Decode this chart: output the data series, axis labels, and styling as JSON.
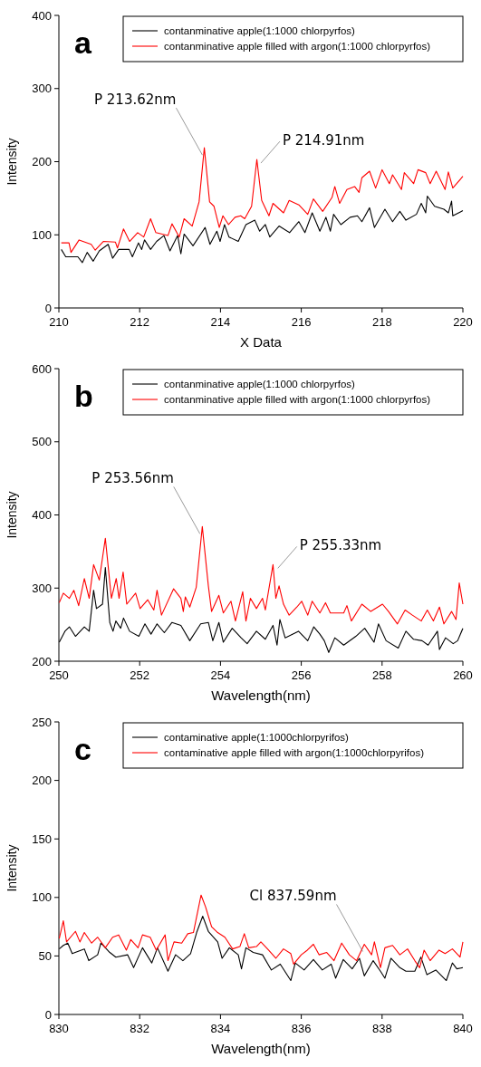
{
  "chart_data": [
    {
      "type": "line",
      "title": "a",
      "xlabel": "X Data",
      "ylabel": "Intensity",
      "xlim": [
        210,
        220
      ],
      "xticks": [
        210,
        212,
        214,
        216,
        218,
        220
      ],
      "ylim": [
        0,
        400
      ],
      "yticks": [
        0,
        100,
        200,
        300,
        400
      ],
      "grid": false,
      "legend": "top right",
      "annotations": [
        {
          "text": "P 213.62nm",
          "x": 213.62,
          "y": 219
        },
        {
          "text": "P 214.91nm",
          "x": 214.91,
          "y": 203
        }
      ],
      "series": [
        {
          "name": "contanminative apple(1:1000 chlorpyrfos)",
          "color": "#000000",
          "x": [
            210.06,
            210.17,
            210.47,
            210.58,
            210.7,
            210.85,
            211,
            211.22,
            211.33,
            211.48,
            211.74,
            211.82,
            211.97,
            212.05,
            212.12,
            212.27,
            212.42,
            212.6,
            212.75,
            212.94,
            213.02,
            213.1,
            213.32,
            213.62,
            213.74,
            213.91,
            213.99,
            214.1,
            214.21,
            214.44,
            214.63,
            214.85,
            214.97,
            215.11,
            215.22,
            215.45,
            215.71,
            215.94,
            216.09,
            216.27,
            216.46,
            216.61,
            216.72,
            216.8,
            216.98,
            217.21,
            217.39,
            217.5,
            217.69,
            217.81,
            218.07,
            218.26,
            218.44,
            218.59,
            218.85,
            218.97,
            219.08,
            219.12,
            219.3,
            219.53,
            219.64,
            219.72,
            219.75,
            220
          ],
          "values": [
            80,
            70,
            70,
            62,
            76,
            64,
            78,
            87,
            68,
            80,
            80,
            70,
            89,
            80,
            93,
            80,
            91,
            99,
            78,
            99,
            74,
            101,
            85,
            110,
            87,
            105,
            91,
            114,
            97,
            91,
            114,
            120,
            105,
            114,
            97,
            112,
            103,
            118,
            103,
            130,
            105,
            124,
            105,
            128,
            114,
            124,
            126,
            118,
            137,
            110,
            135,
            118,
            132,
            120,
            128,
            143,
            130,
            153,
            139,
            135,
            130,
            146,
            126,
            133
          ]
        },
        {
          "name": "contanminative apple filled with argon(1:1000 chlorpyrfos)",
          "color": "#ff0000",
          "x": [
            210.06,
            210.25,
            210.3,
            210.5,
            210.8,
            210.9,
            211.1,
            211.4,
            211.45,
            211.6,
            211.75,
            211.95,
            212.1,
            212.27,
            212.4,
            212.7,
            212.8,
            212.98,
            213.1,
            213.3,
            213.47,
            213.6,
            213.73,
            213.84,
            213.97,
            214.06,
            214.2,
            214.36,
            214.5,
            214.6,
            214.77,
            214.9,
            215.02,
            215.2,
            215.3,
            215.56,
            215.7,
            215.94,
            216.16,
            216.3,
            216.53,
            216.76,
            216.83,
            216.95,
            217.13,
            217.32,
            217.43,
            217.5,
            217.69,
            217.84,
            218,
            218.18,
            218.26,
            218.48,
            218.55,
            218.78,
            218.89,
            219.08,
            219.19,
            219.34,
            219.56,
            219.64,
            219.75,
            220
          ],
          "values": [
            89,
            89,
            76,
            93,
            87,
            79,
            91,
            90,
            82,
            108,
            91,
            103,
            97,
            122,
            103,
            99,
            115,
            97,
            122,
            112,
            145,
            219,
            145,
            139,
            110,
            126,
            114,
            124,
            126,
            122,
            139,
            203,
            147,
            126,
            143,
            130,
            147,
            141,
            128,
            149,
            132,
            151,
            166,
            143,
            162,
            166,
            158,
            178,
            187,
            164,
            189,
            170,
            182,
            162,
            185,
            170,
            189,
            185,
            170,
            187,
            162,
            186,
            164,
            180
          ]
        }
      ]
    },
    {
      "type": "line",
      "title": "b",
      "xlabel": "Wavelength(nm)",
      "ylabel": "Intensity",
      "xlim": [
        250,
        260
      ],
      "xticks": [
        250,
        252,
        254,
        256,
        258,
        260
      ],
      "ylim": [
        200,
        600
      ],
      "yticks": [
        200,
        300,
        400,
        500,
        600
      ],
      "grid": false,
      "legend": "top right",
      "annotations": [
        {
          "text": "P 253.56nm",
          "x": 253.56,
          "y": 384
        },
        {
          "text": "P 255.33nm",
          "x": 255.33,
          "y": 332
        }
      ],
      "series": [
        {
          "name": "contanminative apple(1:1000 chlorpyrfos)",
          "color": "#000000",
          "x": [
            250.01,
            250.15,
            250.26,
            250.41,
            250.63,
            250.75,
            250.86,
            250.93,
            251.08,
            251.15,
            251.26,
            251.34,
            251.41,
            251.53,
            251.6,
            251.75,
            251.98,
            252.13,
            252.28,
            252.43,
            252.61,
            252.8,
            253.02,
            253.24,
            253.51,
            253.7,
            253.81,
            253.96,
            254.07,
            254.29,
            254.51,
            254.66,
            254.89,
            255.11,
            255.3,
            255.4,
            255.47,
            255.6,
            255.93,
            256.16,
            256.31,
            256.46,
            256.57,
            256.68,
            256.83,
            257.05,
            257.35,
            257.57,
            257.8,
            257.91,
            258.1,
            258.4,
            258.59,
            258.78,
            258.99,
            259.14,
            259.37,
            259.42,
            259.57,
            259.76,
            259.87,
            260
          ],
          "values": [
            226,
            241,
            247,
            234,
            247,
            241,
            297,
            272,
            278,
            328,
            253,
            241,
            255,
            245,
            259,
            241,
            234,
            251,
            237,
            251,
            239,
            253,
            249,
            228,
            251,
            253,
            228,
            253,
            226,
            245,
            232,
            224,
            241,
            230,
            249,
            222,
            257,
            232,
            241,
            228,
            247,
            237,
            228,
            212,
            232,
            222,
            234,
            245,
            226,
            251,
            228,
            218,
            241,
            230,
            228,
            222,
            241,
            216,
            232,
            224,
            228,
            245
          ]
        },
        {
          "name": "contanminative apple filled with argon(1:1000 chlorpyrfos)",
          "color": "#ff0000",
          "x": [
            250.01,
            250.11,
            250.26,
            250.37,
            250.49,
            250.63,
            250.75,
            250.86,
            251,
            251.15,
            251.3,
            251.42,
            251.49,
            251.59,
            251.68,
            251.9,
            252.01,
            252.2,
            252.35,
            252.43,
            252.54,
            252.84,
            253.02,
            253.08,
            253.13,
            253.24,
            253.4,
            253.55,
            253.7,
            253.78,
            253.96,
            254.07,
            254.26,
            254.37,
            254.55,
            254.63,
            254.74,
            254.89,
            255.04,
            255.11,
            255.3,
            255.37,
            255.45,
            255.56,
            255.7,
            255.89,
            256.01,
            256.16,
            256.27,
            256.46,
            256.6,
            256.72,
            257.05,
            257.13,
            257.24,
            257.5,
            257.72,
            258.01,
            258.16,
            258.38,
            258.57,
            258.75,
            258.97,
            259.12,
            259.27,
            259.42,
            259.53,
            259.72,
            259.83,
            259.91,
            260
          ],
          "values": [
            280,
            293,
            286,
            297,
            276,
            313,
            286,
            332,
            311,
            368,
            286,
            313,
            286,
            322,
            278,
            293,
            272,
            284,
            270,
            297,
            263,
            299,
            286,
            268,
            288,
            274,
            301,
            384,
            303,
            268,
            290,
            266,
            282,
            255,
            295,
            255,
            286,
            272,
            286,
            270,
            332,
            286,
            303,
            278,
            263,
            274,
            282,
            263,
            282,
            266,
            280,
            266,
            266,
            276,
            255,
            278,
            268,
            278,
            268,
            251,
            270,
            263,
            255,
            270,
            255,
            274,
            251,
            268,
            257,
            307,
            278
          ]
        }
      ]
    },
    {
      "type": "line",
      "title": "c",
      "xlabel": "Wavelength(nm)",
      "ylabel": "Intensity",
      "xlim": [
        830,
        840
      ],
      "xticks": [
        830,
        832,
        834,
        836,
        838,
        840
      ],
      "ylim": [
        0,
        250
      ],
      "yticks": [
        0,
        50,
        100,
        150,
        200,
        250
      ],
      "grid": false,
      "legend": "top right",
      "annotations": [
        {
          "text": "Cl 837.59nm",
          "x": 837.59,
          "y": 60
        }
      ],
      "series": [
        {
          "name": "contaminative apple(1:1000chlorpyrifos)",
          "color": "#000000",
          "x": [
            830.01,
            830.11,
            830.22,
            830.33,
            830.63,
            830.74,
            830.96,
            831.04,
            831.26,
            831.41,
            831.7,
            831.85,
            832.07,
            832.3,
            832.44,
            832.7,
            832.89,
            833.07,
            833.26,
            833.41,
            833.56,
            833.7,
            833.93,
            834.04,
            834.22,
            834.44,
            834.52,
            834.63,
            834.81,
            835.04,
            835.26,
            835.48,
            835.74,
            835.85,
            836.07,
            836.3,
            836.52,
            836.74,
            836.85,
            837.04,
            837.26,
            837.44,
            837.56,
            837.78,
            837.96,
            838.07,
            838.22,
            838.44,
            838.59,
            838.81,
            838.96,
            839.11,
            839.33,
            839.59,
            839.74,
            839.85,
            840
          ],
          "values": [
            56,
            59,
            61,
            52,
            56,
            46,
            51,
            61,
            53,
            49,
            51,
            40,
            57,
            44,
            57,
            37,
            51,
            46,
            52,
            70,
            84,
            71,
            62,
            48,
            57,
            51,
            39,
            57,
            53,
            51,
            38,
            43,
            29,
            44,
            38,
            47,
            38,
            43,
            31,
            47,
            39,
            48,
            33,
            46,
            37,
            31,
            48,
            40,
            37,
            37,
            49,
            34,
            38,
            29,
            44,
            39,
            40
          ]
        },
        {
          "name": "contaminative apple filled with argon(1:1000chlorpyrifos)",
          "color": "#ff0000",
          "x": [
            830.01,
            830.11,
            830.19,
            830.41,
            830.52,
            830.63,
            830.81,
            830.96,
            831.15,
            831.33,
            831.48,
            831.67,
            831.78,
            831.96,
            832.07,
            832.26,
            832.41,
            832.63,
            832.7,
            832.85,
            833.04,
            833.19,
            833.33,
            833.52,
            833.63,
            833.78,
            833.93,
            834.11,
            834.3,
            834.48,
            834.59,
            834.7,
            834.89,
            835,
            835.19,
            835.37,
            835.56,
            835.74,
            835.81,
            836,
            836.15,
            836.3,
            836.44,
            836.63,
            836.81,
            837,
            837.19,
            837.37,
            837.56,
            837.74,
            837.81,
            837.96,
            838.07,
            838.26,
            838.44,
            838.63,
            838.81,
            838.93,
            839.04,
            839.19,
            839.41,
            839.56,
            839.74,
            839.93,
            840
          ],
          "values": [
            65,
            80,
            62,
            71,
            62,
            70,
            61,
            66,
            57,
            66,
            68,
            55,
            64,
            57,
            68,
            66,
            55,
            68,
            46,
            62,
            61,
            69,
            70,
            102,
            92,
            75,
            70,
            66,
            56,
            58,
            69,
            57,
            58,
            62,
            55,
            48,
            56,
            52,
            43,
            51,
            55,
            60,
            51,
            53,
            46,
            61,
            51,
            46,
            60,
            51,
            62,
            40,
            57,
            59,
            51,
            56,
            46,
            40,
            55,
            46,
            55,
            52,
            56,
            49,
            62
          ]
        }
      ]
    }
  ]
}
